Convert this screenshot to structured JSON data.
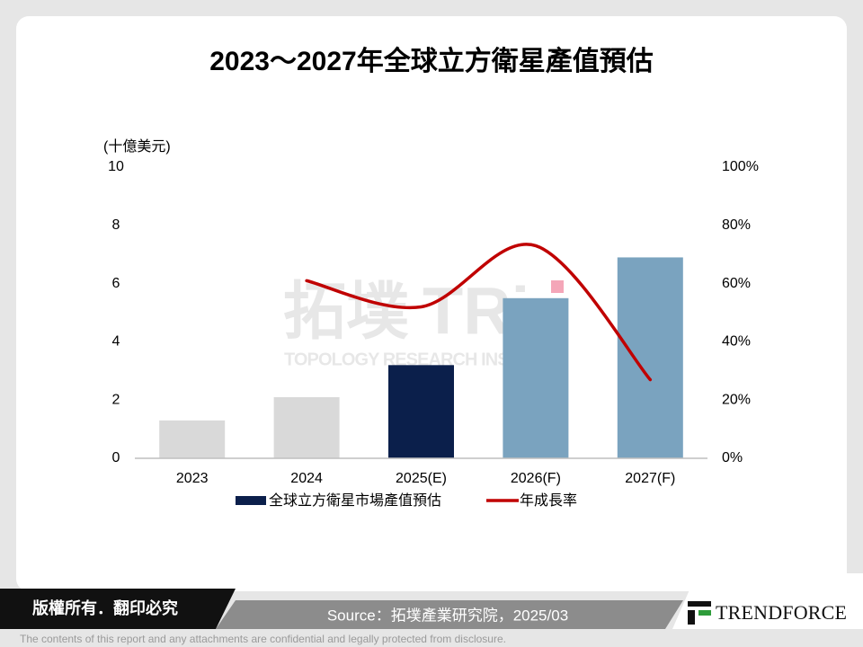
{
  "chart_data": {
    "type": "bar_line",
    "title": "2023～2027年全球立方衛星產值預估",
    "y_label": "(十億美元)",
    "categories": [
      "2023",
      "2024",
      "2025(E)",
      "2026(F)",
      "2027(F)"
    ],
    "series": [
      {
        "name": "全球立方衛星市場產值預估",
        "type": "bar",
        "color": "#0b1f4b",
        "colors": [
          "#d9d9d9",
          "#d9d9d9",
          "#0b1f4b",
          "#7aa3bf",
          "#7aa3bf"
        ],
        "values": [
          1.3,
          2.1,
          3.2,
          5.5,
          6.9
        ]
      },
      {
        "name": "年成長率",
        "type": "line",
        "axis": "y2",
        "color": "#c00000",
        "values": [
          null,
          61,
          52,
          73,
          27
        ]
      }
    ],
    "ylim": [
      0,
      10
    ],
    "yticks": [
      0,
      2,
      4,
      6,
      8,
      10
    ],
    "y2lim": [
      0,
      100
    ],
    "y2ticks": [
      {
        "value": 0,
        "label": "0%"
      },
      {
        "value": 20,
        "label": "20%"
      },
      {
        "value": 40,
        "label": "40%"
      },
      {
        "value": 60,
        "label": "60%"
      },
      {
        "value": 80,
        "label": "80%"
      },
      {
        "value": 100,
        "label": "100%"
      }
    ],
    "legend": "bottom"
  },
  "watermark": {
    "name": "拓墣",
    "logo": "TRi",
    "sub": "TOPOLOGY RESEARCH INSTITUTE"
  },
  "footer": {
    "copyright": "版權所有．翻印必究",
    "source": "Source：拓墣產業研究院，2025/03",
    "brand": "TRENDFORCE",
    "disclaimer": "The contents of this report and any attachments are confidential and legally protected from disclosure."
  }
}
